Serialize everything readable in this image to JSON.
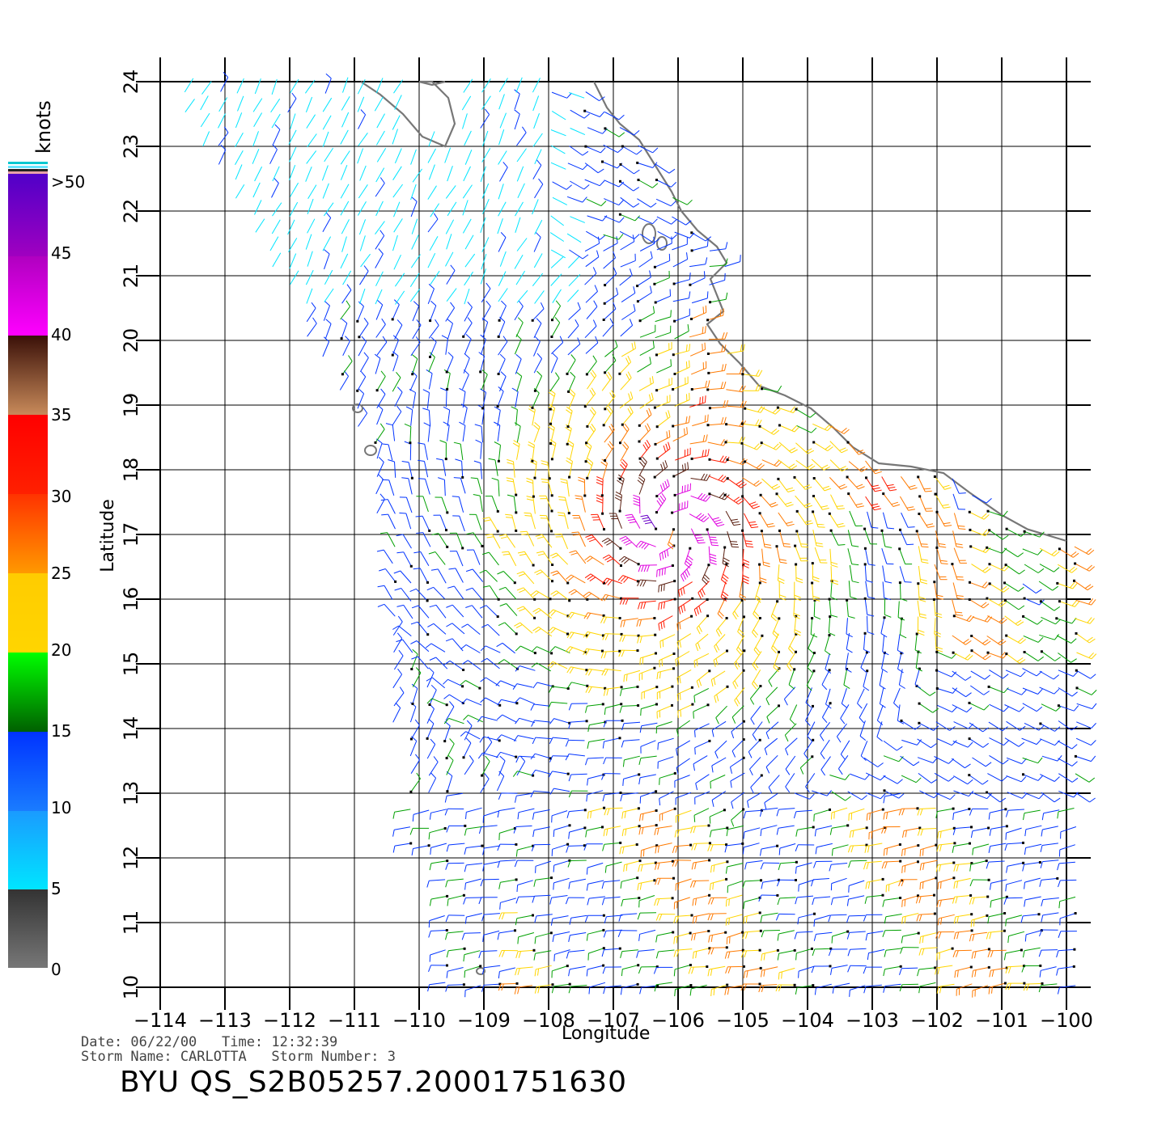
{
  "legend": {
    "unit": "knots",
    "labels": [
      ">50",
      "45",
      "40",
      "35",
      "30",
      "25",
      "20",
      "15",
      "10",
      "5",
      "0"
    ],
    "colors": {
      "gray": "#777777",
      "cyan": "#00e5ff",
      "blue": "#0033ff",
      "green": "#00a000",
      "yellow": "#ffd500",
      "orange": "#ff7a00",
      "red": "#ff1a00",
      "brown": "#5a1f10",
      "magenta": "#e000e0",
      "purple": "#6a00c8"
    }
  },
  "axes": {
    "x_title": "Longitude",
    "y_title": "Latitude",
    "x_ticks": [
      "−114",
      "−113",
      "−112",
      "−111",
      "−110",
      "−109",
      "−108",
      "−107",
      "−106",
      "−105",
      "−104",
      "−103",
      "−102",
      "−101",
      "−100"
    ],
    "y_ticks": [
      "10",
      "11",
      "12",
      "13",
      "14",
      "15",
      "16",
      "17",
      "18",
      "19",
      "20",
      "21",
      "22",
      "23",
      "24"
    ],
    "lon_range": [
      -114,
      -100
    ],
    "lat_range": [
      10,
      24
    ],
    "grid": true
  },
  "info": {
    "date_line": "Date: 06/22/00   Time: 12:32:39",
    "storm_line": "Storm Name: CARLOTTA   Storm Number: 3"
  },
  "title": "BYU QS_S2B05257.20001751630",
  "storm": {
    "center_lon": -106.1,
    "center_lat": 17.1
  }
}
